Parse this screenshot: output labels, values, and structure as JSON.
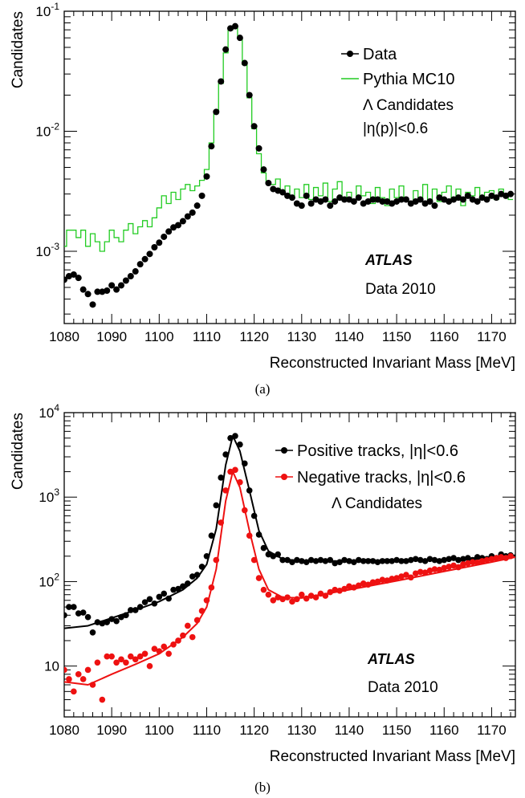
{
  "panels": [
    {
      "caption": "(a)"
    },
    {
      "caption": "(b)"
    }
  ],
  "colors": {
    "data": "#000000",
    "mc": "#22cc22",
    "positive": "#000000",
    "negative": "#ee1111"
  },
  "chart_data": [
    {
      "type": "scatter",
      "ylabel": "Candidates",
      "xlabel": "Reconstructed Invariant Mass [MeV]",
      "xlim": [
        1080,
        1175
      ],
      "ylim": [
        0.00025,
        0.1
      ],
      "yscale": "log",
      "x_ticks": [
        1080,
        1090,
        1100,
        1110,
        1120,
        1130,
        1140,
        1150,
        1160,
        1170
      ],
      "y_ticks": [
        {
          "value": 0.001,
          "base": "10",
          "exp": "-3"
        },
        {
          "value": 0.01,
          "base": "10",
          "exp": "-2"
        },
        {
          "value": 0.1,
          "base": "10",
          "exp": "-1"
        }
      ],
      "legend": {
        "placement": "top-right",
        "entries": [
          "Data",
          "Pythia MC10"
        ]
      },
      "annotations": [
        "Λ Candidates",
        "|η(p)|<0.6",
        "ATLAS",
        "Data 2010"
      ],
      "series": [
        {
          "name": "Data",
          "style": "markers",
          "x": [
            1080,
            1081,
            1082,
            1083,
            1084,
            1085,
            1086,
            1087,
            1088,
            1089,
            1090,
            1091,
            1092,
            1093,
            1094,
            1095,
            1096,
            1097,
            1098,
            1099,
            1100,
            1101,
            1102,
            1103,
            1104,
            1105,
            1106,
            1107,
            1108,
            1109,
            1110,
            1111,
            1112,
            1113,
            1114,
            1115,
            1116,
            1117,
            1118,
            1119,
            1120,
            1121,
            1122,
            1123,
            1124,
            1125,
            1126,
            1127,
            1128,
            1129,
            1130,
            1131,
            1132,
            1133,
            1134,
            1135,
            1136,
            1137,
            1138,
            1139,
            1140,
            1141,
            1142,
            1143,
            1144,
            1145,
            1146,
            1147,
            1148,
            1149,
            1150,
            1151,
            1152,
            1153,
            1154,
            1155,
            1156,
            1157,
            1158,
            1159,
            1160,
            1161,
            1162,
            1163,
            1164,
            1165,
            1166,
            1167,
            1168,
            1169,
            1170,
            1171,
            1172,
            1173,
            1174
          ],
          "y": [
            0.00058,
            0.00062,
            0.00064,
            0.0006,
            0.00048,
            0.00044,
            0.00036,
            0.00046,
            0.00046,
            0.00047,
            0.00052,
            0.00048,
            0.00052,
            0.00057,
            0.00062,
            0.00068,
            0.00078,
            0.00086,
            0.00095,
            0.00108,
            0.00118,
            0.00132,
            0.00146,
            0.00158,
            0.00165,
            0.00178,
            0.00195,
            0.0021,
            0.0024,
            0.0029,
            0.0042,
            0.0075,
            0.0145,
            0.026,
            0.048,
            0.072,
            0.075,
            0.06,
            0.037,
            0.02,
            0.011,
            0.0072,
            0.0048,
            0.0037,
            0.0033,
            0.0032,
            0.0031,
            0.0029,
            0.0028,
            0.0025,
            0.0024,
            0.0029,
            0.0025,
            0.0027,
            0.0026,
            0.0027,
            0.0024,
            0.0026,
            0.0028,
            0.0027,
            0.0027,
            0.0026,
            0.0028,
            0.0025,
            0.0026,
            0.0027,
            0.0027,
            0.0026,
            0.0026,
            0.0025,
            0.0026,
            0.0027,
            0.0027,
            0.0025,
            0.0026,
            0.0027,
            0.0025,
            0.0026,
            0.0024,
            0.0028,
            0.0027,
            0.0026,
            0.0027,
            0.0028,
            0.0027,
            0.0029,
            0.0027,
            0.0026,
            0.0028,
            0.0027,
            0.0029,
            0.0028,
            0.003,
            0.0029,
            0.003
          ]
        },
        {
          "name": "Pythia MC10",
          "style": "step",
          "x": [
            1080,
            1081,
            1082,
            1083,
            1084,
            1085,
            1086,
            1087,
            1088,
            1089,
            1090,
            1091,
            1092,
            1093,
            1094,
            1095,
            1096,
            1097,
            1098,
            1099,
            1100,
            1101,
            1102,
            1103,
            1104,
            1105,
            1106,
            1107,
            1108,
            1109,
            1110,
            1111,
            1112,
            1113,
            1114,
            1115,
            1116,
            1117,
            1118,
            1119,
            1120,
            1121,
            1122,
            1123,
            1124,
            1125,
            1126,
            1127,
            1128,
            1129,
            1130,
            1131,
            1132,
            1133,
            1134,
            1135,
            1136,
            1137,
            1138,
            1139,
            1140,
            1141,
            1142,
            1143,
            1144,
            1145,
            1146,
            1147,
            1148,
            1149,
            1150,
            1151,
            1152,
            1153,
            1154,
            1155,
            1156,
            1157,
            1158,
            1159,
            1160,
            1161,
            1162,
            1163,
            1164,
            1165,
            1166,
            1167,
            1168,
            1169,
            1170,
            1171,
            1172,
            1173,
            1174
          ],
          "y": [
            0.0011,
            0.0015,
            0.0015,
            0.0013,
            0.0015,
            0.0011,
            0.0014,
            0.0012,
            0.001,
            0.0012,
            0.0015,
            0.0013,
            0.0012,
            0.0015,
            0.0017,
            0.0014,
            0.0016,
            0.0018,
            0.0016,
            0.0019,
            0.0023,
            0.0029,
            0.0025,
            0.0031,
            0.0027,
            0.0033,
            0.0036,
            0.0032,
            0.0035,
            0.0039,
            0.0048,
            0.008,
            0.0145,
            0.025,
            0.045,
            0.07,
            0.074,
            0.06,
            0.036,
            0.019,
            0.0105,
            0.0065,
            0.0045,
            0.0038,
            0.0036,
            0.004,
            0.0032,
            0.0035,
            0.0029,
            0.0033,
            0.0028,
            0.0036,
            0.0027,
            0.0034,
            0.0029,
            0.0037,
            0.0026,
            0.0033,
            0.0038,
            0.0028,
            0.0031,
            0.0027,
            0.0035,
            0.0029,
            0.0031,
            0.0025,
            0.0034,
            0.0028,
            0.0024,
            0.0033,
            0.0028,
            0.0035,
            0.0027,
            0.0026,
            0.0032,
            0.0028,
            0.0036,
            0.0027,
            0.0033,
            0.0026,
            0.0031,
            0.0035,
            0.0027,
            0.0033,
            0.0024,
            0.0031,
            0.0029,
            0.0034,
            0.0027,
            0.0031,
            0.0032,
            0.0027,
            0.0033,
            0.0029,
            0.0027
          ]
        }
      ]
    },
    {
      "type": "scatter",
      "ylabel": "Candidates",
      "xlabel": "Reconstructed Invariant Mass [MeV]",
      "xlim": [
        1080,
        1175
      ],
      "ylim": [
        2.5,
        10000
      ],
      "yscale": "log",
      "x_ticks": [
        1080,
        1090,
        1100,
        1110,
        1120,
        1130,
        1140,
        1150,
        1160,
        1170
      ],
      "y_ticks": [
        {
          "value": 10,
          "base": "10",
          "exp": ""
        },
        {
          "value": 100,
          "base": "10",
          "exp": "2"
        },
        {
          "value": 1000,
          "base": "10",
          "exp": "3"
        },
        {
          "value": 10000,
          "base": "10",
          "exp": "4"
        }
      ],
      "legend": {
        "placement": "top-right",
        "entries": [
          "Positive tracks, |η|<0.6",
          "Negative tracks, |η|<0.6"
        ]
      },
      "annotations": [
        "Λ Candidates",
        "ATLAS",
        "Data 2010"
      ],
      "series": [
        {
          "name": "Positive tracks, |η|<0.6",
          "style": "markers+fit",
          "x": [
            1080,
            1081,
            1082,
            1083,
            1084,
            1085,
            1086,
            1087,
            1088,
            1089,
            1090,
            1091,
            1092,
            1093,
            1094,
            1095,
            1096,
            1097,
            1098,
            1099,
            1100,
            1101,
            1102,
            1103,
            1104,
            1105,
            1106,
            1107,
            1108,
            1109,
            1110,
            1111,
            1112,
            1113,
            1114,
            1115,
            1116,
            1117,
            1118,
            1119,
            1120,
            1121,
            1122,
            1123,
            1124,
            1125,
            1126,
            1127,
            1128,
            1129,
            1130,
            1131,
            1132,
            1133,
            1134,
            1135,
            1136,
            1137,
            1138,
            1139,
            1140,
            1141,
            1142,
            1143,
            1144,
            1145,
            1146,
            1147,
            1148,
            1149,
            1150,
            1151,
            1152,
            1153,
            1154,
            1155,
            1156,
            1157,
            1158,
            1159,
            1160,
            1161,
            1162,
            1163,
            1164,
            1165,
            1166,
            1167,
            1168,
            1169,
            1170,
            1171,
            1172,
            1173,
            1174
          ],
          "y": [
            40,
            50,
            50,
            42,
            43,
            38,
            25,
            33,
            32,
            33,
            36,
            34,
            38,
            40,
            46,
            46,
            50,
            57,
            62,
            55,
            66,
            72,
            63,
            80,
            82,
            88,
            95,
            115,
            120,
            150,
            200,
            350,
            800,
            1700,
            3200,
            5000,
            5300,
            4200,
            2500,
            1200,
            600,
            360,
            250,
            210,
            200,
            210,
            180,
            180,
            170,
            180,
            175,
            170,
            180,
            175,
            180,
            175,
            180,
            165,
            170,
            180,
            175,
            170,
            180,
            175,
            175,
            175,
            170,
            175,
            175,
            175,
            180,
            175,
            175,
            180,
            185,
            180,
            175,
            185,
            180,
            175,
            180,
            185,
            190,
            180,
            185,
            190,
            180,
            195,
            190,
            185,
            200,
            190,
            210,
            200,
            205
          ],
          "fit": [
            [
              1080,
              28
            ],
            [
              1085,
              30
            ],
            [
              1090,
              37
            ],
            [
              1095,
              46
            ],
            [
              1100,
              58
            ],
            [
              1105,
              80
            ],
            [
              1108,
              110
            ],
            [
              1110,
              160
            ],
            [
              1112,
              420
            ],
            [
              1114,
              2400
            ],
            [
              1115.5,
              5300
            ],
            [
              1117,
              3500
            ],
            [
              1119,
              1200
            ],
            [
              1121,
              400
            ],
            [
              1123,
              230
            ],
            [
              1126,
              185
            ],
            [
              1130,
              175
            ],
            [
              1140,
              175
            ],
            [
              1150,
              178
            ],
            [
              1160,
              182
            ],
            [
              1170,
              195
            ],
            [
              1175,
              205
            ]
          ]
        },
        {
          "name": "Negative tracks, |η|<0.6",
          "style": "markers+fit",
          "x": [
            1080,
            1081,
            1082,
            1083,
            1084,
            1085,
            1086,
            1087,
            1088,
            1089,
            1090,
            1091,
            1092,
            1093,
            1094,
            1095,
            1096,
            1097,
            1098,
            1099,
            1100,
            1101,
            1102,
            1103,
            1104,
            1105,
            1106,
            1107,
            1108,
            1109,
            1110,
            1111,
            1112,
            1113,
            1114,
            1115,
            1116,
            1117,
            1118,
            1119,
            1120,
            1121,
            1122,
            1123,
            1124,
            1125,
            1126,
            1127,
            1128,
            1129,
            1130,
            1131,
            1132,
            1133,
            1134,
            1135,
            1136,
            1137,
            1138,
            1139,
            1140,
            1141,
            1142,
            1143,
            1144,
            1145,
            1146,
            1147,
            1148,
            1149,
            1150,
            1151,
            1152,
            1153,
            1154,
            1155,
            1156,
            1157,
            1158,
            1159,
            1160,
            1161,
            1162,
            1163,
            1164,
            1165,
            1166,
            1167,
            1168,
            1169,
            1170,
            1171,
            1172,
            1173,
            1174
          ],
          "y": [
            9,
            7,
            5,
            8,
            7,
            9,
            6,
            11,
            4,
            13,
            13,
            11,
            12,
            11,
            13,
            12,
            13,
            14,
            10,
            16,
            15,
            17,
            14,
            18,
            20,
            23,
            30,
            22,
            35,
            45,
            60,
            85,
            180,
            500,
            1200,
            2000,
            2100,
            1500,
            700,
            350,
            180,
            110,
            80,
            70,
            60,
            65,
            62,
            65,
            58,
            62,
            70,
            63,
            68,
            65,
            72,
            68,
            75,
            80,
            78,
            82,
            88,
            85,
            90,
            95,
            92,
            98,
            100,
            105,
            103,
            108,
            110,
            115,
            120,
            112,
            125,
            130,
            128,
            135,
            140,
            138,
            145,
            150,
            155,
            148,
            160,
            165,
            170,
            168,
            175,
            180,
            185,
            190,
            195,
            190,
            200
          ],
          "fit": [
            [
              1080,
              6.5
            ],
            [
              1085,
              6
            ],
            [
              1090,
              8
            ],
            [
              1095,
              10.5
            ],
            [
              1100,
              14
            ],
            [
              1105,
              22
            ],
            [
              1108,
              32
            ],
            [
              1110,
              50
            ],
            [
              1112,
              140
            ],
            [
              1114,
              900
            ],
            [
              1115.5,
              2000
            ],
            [
              1117,
              1300
            ],
            [
              1119,
              400
            ],
            [
              1121,
              140
            ],
            [
              1123,
              80
            ],
            [
              1126,
              65
            ],
            [
              1130,
              64
            ],
            [
              1140,
              80
            ],
            [
              1150,
              102
            ],
            [
              1160,
              132
            ],
            [
              1170,
              170
            ],
            [
              1175,
              195
            ]
          ]
        }
      ]
    }
  ]
}
